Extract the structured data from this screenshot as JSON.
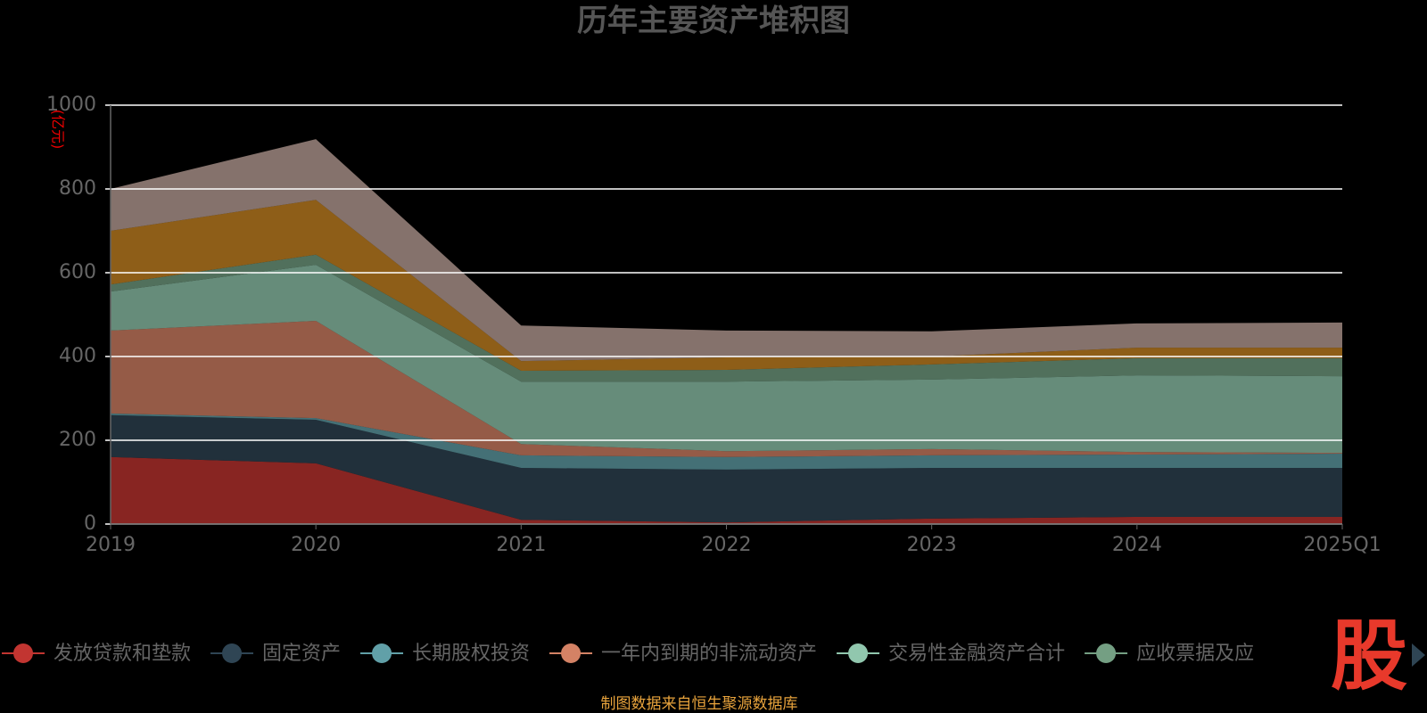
{
  "chart_data": {
    "type": "stacked_area",
    "title": "历年主要资产堆积图",
    "y_label": "(亿元)",
    "categories": [
      "2019",
      "2020",
      "2021",
      "2022",
      "2023",
      "2024",
      "2025Q1"
    ],
    "ylim": [
      0,
      1000
    ],
    "yticks": [
      0,
      200,
      400,
      600,
      800,
      1000
    ],
    "grid": true,
    "series": [
      {
        "name": "发放贷款和垫款",
        "color": "#c23531",
        "values": [
          160,
          145,
          10,
          4,
          13,
          17,
          17
        ]
      },
      {
        "name": "固定资产",
        "color": "#2f4554",
        "values": [
          100,
          104,
          124,
          126,
          121,
          117,
          117
        ]
      },
      {
        "name": "长期股权投资",
        "color": "#61a0a8",
        "values": [
          4,
          4,
          30,
          30,
          30,
          32,
          34
        ]
      },
      {
        "name": "一年内到期的非流动资产",
        "color": "#d48265",
        "values": [
          198,
          232,
          27,
          14,
          15,
          6,
          2
        ]
      },
      {
        "name": "交易性金融资产合计",
        "color": "#91c7ae",
        "values": [
          93,
          134,
          149,
          166,
          166,
          183,
          183
        ]
      },
      {
        "name": "应收票据及应",
        "color": "#749f83",
        "values": [
          17,
          24,
          26,
          28,
          36,
          41,
          43
        ]
      },
      {
        "color": "#ca8622",
        "values": [
          128,
          131,
          23,
          30,
          19,
          25,
          25
        ]
      },
      {
        "color": "#bda29a",
        "values": [
          100,
          145,
          85,
          64,
          60,
          58,
          60
        ]
      }
    ],
    "source": "制图数据来自恒生聚源数据库",
    "logo": "股"
  }
}
